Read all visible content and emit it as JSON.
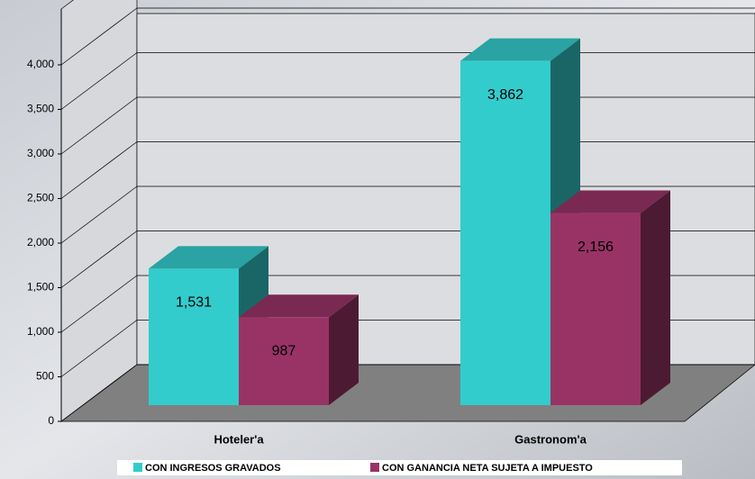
{
  "chart_data": {
    "type": "bar3d",
    "categories": [
      "Hoteler'a",
      "Gastronom'a"
    ],
    "series": [
      {
        "name": "CON INGRESOS GRAVADOS",
        "color": "#33CCCC",
        "values": [
          1531,
          3862
        ],
        "value_labels": [
          "1,531",
          "3,862"
        ]
      },
      {
        "name": "CON GANANCIA NETA SUJETA A IMPUESTO",
        "color": "#993366",
        "values": [
          987,
          2156
        ],
        "value_labels": [
          "987",
          "2,156"
        ]
      }
    ],
    "ylim": [
      0,
      4000
    ],
    "yticks": [
      0,
      500,
      {
        "value": 1000,
        "label": "1,000"
      },
      {
        "value": 1500,
        "label": "1,500"
      },
      {
        "value": 2000,
        "label": "2,000"
      },
      {
        "value": 2500,
        "label": "2,500"
      },
      {
        "value": 3000,
        "label": "3,000"
      },
      {
        "value": 3500,
        "label": "3,500"
      },
      {
        "value": 4000,
        "label": "4,000"
      }
    ],
    "grid": true,
    "legend": "bottom"
  }
}
